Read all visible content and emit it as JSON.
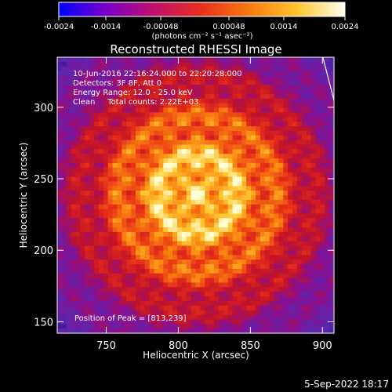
{
  "colorbar": {
    "ticks": [
      "-0.0024",
      "-0.0014",
      "-0.00048",
      "0.00048",
      "0.0014",
      "0.0024"
    ],
    "units": "(photons cm⁻² s⁻¹ asec⁻²)",
    "stops": [
      "#0000ff",
      "#7a00c8",
      "#c0106a",
      "#e8301e",
      "#f87a10",
      "#ffc62e",
      "#fffff0"
    ]
  },
  "title": "Reconstructed RHESSI Image",
  "info": {
    "line1": "10-Jun-2016 22:16:24.000 to 22:20:28.000",
    "line2": "Detectors: 3F 8F, Att 0",
    "line3": "Energy Range: 12.0 - 25.0 keV",
    "line4": "Clean     Total counts: 2.22E+03",
    "peak": "Position of Peak = [813,239]"
  },
  "footer": "5-Sep-2022 18:17",
  "chart_data": {
    "type": "heatmap",
    "title": "Reconstructed RHESSI Image",
    "xlabel": "Heliocentric X (arcsec)",
    "ylabel": "Heliocentric Y (arcsec)",
    "x_ticks": [
      750,
      800,
      850,
      900
    ],
    "y_ticks": [
      150,
      200,
      250,
      300
    ],
    "xlim": [
      716,
      908
    ],
    "ylim": [
      142,
      335
    ],
    "peak": {
      "x": 813,
      "y": 239
    },
    "value_range": [
      -0.0024,
      0.0024
    ],
    "limb": [
      [
        900,
        336
      ],
      [
        908,
        305
      ]
    ]
  }
}
